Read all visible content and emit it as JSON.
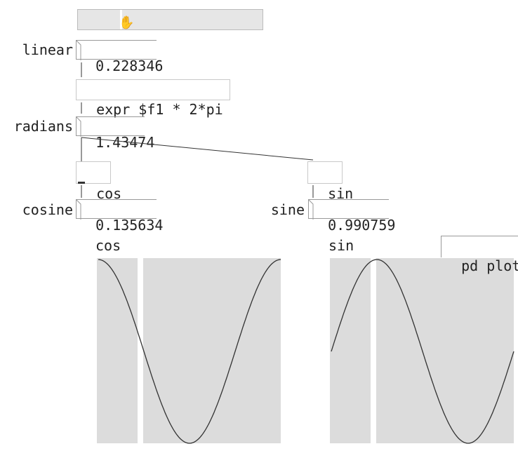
{
  "slider": {},
  "linear": {
    "label": "linear",
    "value": "0.228346"
  },
  "expr": {
    "text": "expr $f1 * 2*pi"
  },
  "radians": {
    "label": "radians",
    "value": "1.43474"
  },
  "cos_obj": {
    "text": "cos"
  },
  "sin_obj": {
    "text": "sin"
  },
  "cosine": {
    "label": "cosine",
    "value": "0.135634"
  },
  "sine": {
    "label": "sine",
    "value": "0.990759"
  },
  "plots": {
    "cos_title": "cos",
    "sin_title": "sin",
    "pd_plot_label": "pd plot"
  },
  "colors": {
    "plot_bg": "#dcdcdc",
    "line": "#333333"
  }
}
